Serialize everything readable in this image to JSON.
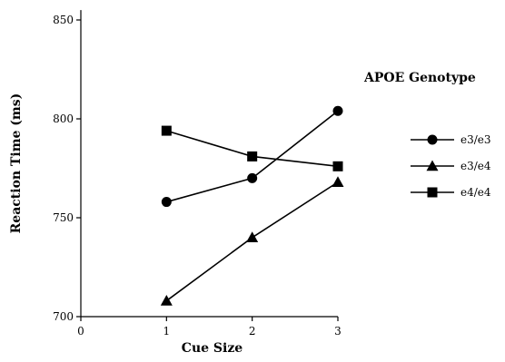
{
  "chart_data": {
    "type": "line",
    "xlabel": "Cue Size",
    "ylabel": "Reaction Time (ms)",
    "x_ticks": [
      0,
      1,
      2,
      3
    ],
    "y_ticks": [
      700,
      750,
      800,
      850
    ],
    "xlim": [
      0,
      3
    ],
    "ylim": [
      700,
      855
    ],
    "grid": false,
    "legend": {
      "title": "APOE Genotype",
      "placement": "right"
    },
    "x": [
      1,
      2,
      3
    ],
    "series": [
      {
        "name": "e3/e3",
        "marker": "circle",
        "values": [
          758,
          770,
          804
        ]
      },
      {
        "name": "e3/e4",
        "marker": "triangle",
        "values": [
          708,
          740,
          768
        ]
      },
      {
        "name": "e4/e4",
        "marker": "square",
        "values": [
          794,
          781,
          776
        ]
      }
    ]
  }
}
